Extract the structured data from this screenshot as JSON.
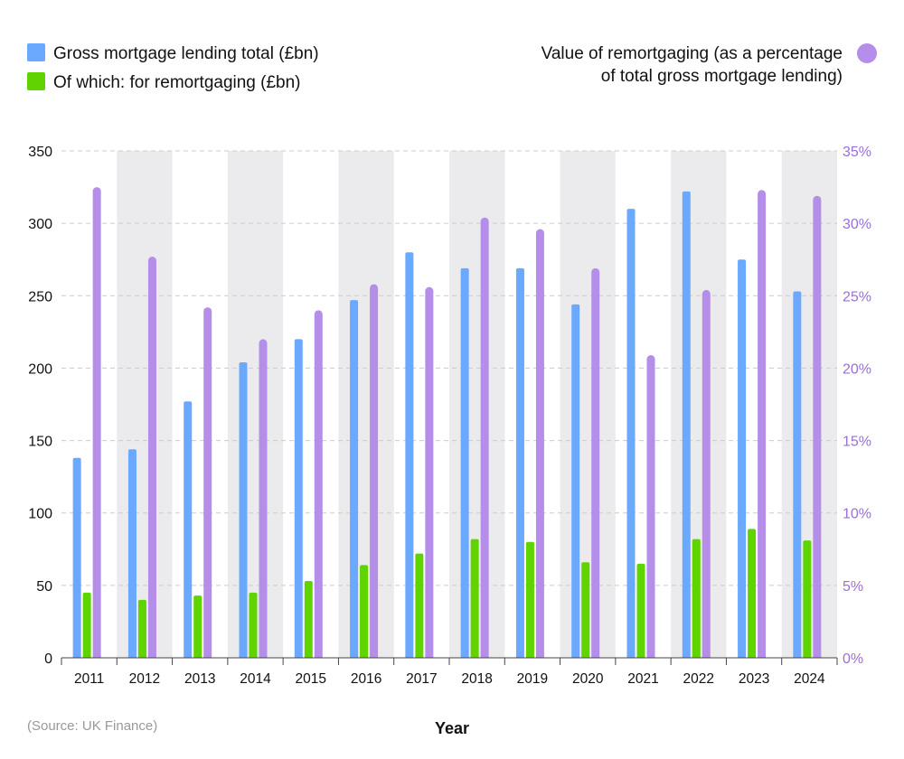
{
  "colors": {
    "gross": "#6aa9ff",
    "remortgage": "#5fd400",
    "percent": "#b48ee8",
    "band": "#ebebed",
    "grid": "#cccccc",
    "right_axis_text": "#9a6fd8"
  },
  "legend": {
    "gross_label": "Gross mortgage lending total (£bn)",
    "remortgage_label": "Of which: for remortgaging (£bn)",
    "percent_label_line1": "Value of remortgaging (as a percentage",
    "percent_label_line2": "of total gross mortgage lending)"
  },
  "source": "(Source: UK Finance)",
  "chart_data": {
    "type": "bar",
    "xlabel": "Year",
    "categories": [
      "2011",
      "2012",
      "2013",
      "2014",
      "2015",
      "2016",
      "2017",
      "2018",
      "2019",
      "2020",
      "2021",
      "2022",
      "2023",
      "2024"
    ],
    "series": [
      {
        "name": "Gross mortgage lending total (£bn)",
        "axis": "left",
        "values": [
          138,
          144,
          177,
          204,
          220,
          247,
          280,
          269,
          269,
          244,
          310,
          322,
          275,
          253
        ]
      },
      {
        "name": "Of which: for remortgaging (£bn)",
        "axis": "left",
        "values": [
          45,
          40,
          43,
          45,
          53,
          64,
          72,
          82,
          80,
          66,
          65,
          82,
          89,
          81
        ]
      },
      {
        "name": "Value of remortgaging (as a percentage of total gross mortgage lending)",
        "axis": "right",
        "values": [
          32.5,
          27.7,
          24.2,
          22.0,
          24.0,
          25.8,
          25.6,
          30.4,
          29.6,
          26.9,
          20.9,
          25.4,
          32.3,
          31.9
        ]
      }
    ],
    "y_left": {
      "ticks": [
        "0",
        "50",
        "100",
        "150",
        "200",
        "250",
        "300",
        "350"
      ],
      "lim": [
        0,
        350
      ]
    },
    "y_right": {
      "ticks": [
        "0%",
        "5%",
        "10%",
        "15%",
        "20%",
        "25%",
        "30%",
        "35%"
      ],
      "lim": [
        0,
        35
      ]
    },
    "grid": true,
    "alternating_bands": true,
    "legend_placement": "top"
  }
}
